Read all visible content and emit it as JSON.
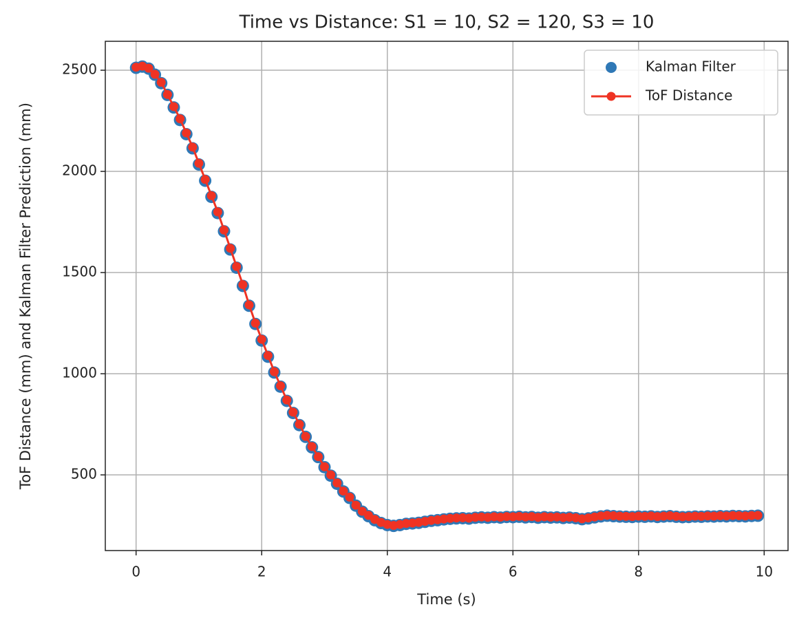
{
  "chart_data": {
    "type": "line",
    "title": "Time vs Distance: S1 = 10, S2 = 120, S3 = 10",
    "x_label": "Time (s)",
    "y_label": "ToF Distance (mm) and Kalman Filter Prediction (mm)",
    "xlim": [
      -0.49,
      10.38
    ],
    "ylim": [
      126,
      2643
    ],
    "xticks": [
      0,
      2,
      4,
      6,
      8,
      10
    ],
    "yticks": [
      500,
      1000,
      1500,
      2000,
      2500
    ],
    "grid": true,
    "legend": "upper right",
    "series": [
      {
        "name": "Kalman Filter",
        "color": "#2f78b6",
        "style": "markers",
        "x": [
          0,
          0.1,
          0.2,
          0.3,
          0.4,
          0.5,
          0.6,
          0.7,
          0.8,
          0.9,
          1,
          1.1,
          1.2,
          1.3,
          1.4,
          1.5,
          1.6,
          1.7,
          1.8,
          1.9,
          2,
          2.1,
          2.2,
          2.3,
          2.4,
          2.5,
          2.6,
          2.7,
          2.8,
          2.9,
          3,
          3.1,
          3.2,
          3.3,
          3.4,
          3.5,
          3.6,
          3.7,
          3.8,
          3.9,
          4,
          4.1,
          4.2,
          4.3,
          4.4,
          4.5,
          4.6,
          4.7,
          4.8,
          4.9,
          5,
          5.1,
          5.2,
          5.3,
          5.4,
          5.5,
          5.6,
          5.7,
          5.8,
          5.9,
          6,
          6.1,
          6.2,
          6.3,
          6.4,
          6.5,
          6.6,
          6.7,
          6.8,
          6.9,
          7,
          7.1,
          7.2,
          7.3,
          7.4,
          7.5,
          7.6,
          7.7,
          7.8,
          7.9,
          8,
          8.1,
          8.2,
          8.3,
          8.4,
          8.5,
          8.6,
          8.7,
          8.8,
          8.9,
          9,
          9.1,
          9.2,
          9.3,
          9.4,
          9.5,
          9.6,
          9.7,
          9.8,
          9.9
        ],
        "values": [
          2512,
          2518,
          2508,
          2478,
          2436,
          2378,
          2316,
          2254,
          2184,
          2114,
          2034,
          1954,
          1874,
          1794,
          1704,
          1614,
          1524,
          1434,
          1336,
          1246,
          1164,
          1084,
          1006,
          936,
          866,
          806,
          746,
          688,
          636,
          588,
          538,
          496,
          456,
          418,
          386,
          348,
          318,
          296,
          276,
          262,
          252,
          248,
          252,
          258,
          260,
          263,
          268,
          273,
          276,
          280,
          283,
          285,
          286,
          284,
          288,
          290,
          288,
          291,
          289,
          292,
          291,
          293,
          290,
          292,
          288,
          291,
          289,
          290,
          287,
          289,
          286,
          281,
          285,
          290,
          295,
          298,
          296,
          294,
          293,
          292,
          294,
          293,
          295,
          292,
          294,
          296,
          293,
          291,
          292,
          294,
          293,
          295,
          294,
          296,
          295,
          297,
          296,
          295,
          297,
          298
        ]
      },
      {
        "name": "ToF Distance",
        "color": "#ef3323",
        "style": "line-markers",
        "x": [
          0,
          0.1,
          0.2,
          0.3,
          0.4,
          0.5,
          0.6,
          0.7,
          0.8,
          0.9,
          1,
          1.1,
          1.2,
          1.3,
          1.4,
          1.5,
          1.6,
          1.7,
          1.8,
          1.9,
          2,
          2.1,
          2.2,
          2.3,
          2.4,
          2.5,
          2.6,
          2.7,
          2.8,
          2.9,
          3,
          3.1,
          3.2,
          3.3,
          3.4,
          3.5,
          3.6,
          3.7,
          3.8,
          3.9,
          4,
          4.1,
          4.2,
          4.3,
          4.4,
          4.5,
          4.6,
          4.7,
          4.8,
          4.9,
          5,
          5.1,
          5.2,
          5.3,
          5.4,
          5.5,
          5.6,
          5.7,
          5.8,
          5.9,
          6,
          6.1,
          6.2,
          6.3,
          6.4,
          6.5,
          6.6,
          6.7,
          6.8,
          6.9,
          7,
          7.1,
          7.2,
          7.3,
          7.4,
          7.5,
          7.6,
          7.7,
          7.8,
          7.9,
          8,
          8.1,
          8.2,
          8.3,
          8.4,
          8.5,
          8.6,
          8.7,
          8.8,
          8.9,
          9,
          9.1,
          9.2,
          9.3,
          9.4,
          9.5,
          9.6,
          9.7,
          9.8,
          9.9
        ],
        "values": [
          2515,
          2520,
          2510,
          2480,
          2440,
          2380,
          2320,
          2260,
          2190,
          2120,
          2040,
          1960,
          1880,
          1800,
          1710,
          1620,
          1530,
          1440,
          1340,
          1250,
          1170,
          1090,
          1010,
          940,
          870,
          810,
          750,
          690,
          640,
          590,
          540,
          500,
          460,
          420,
          390,
          350,
          320,
          300,
          280,
          265,
          255,
          250,
          255,
          260,
          262,
          265,
          270,
          275,
          278,
          282,
          285,
          287,
          288,
          286,
          290,
          292,
          290,
          293,
          291,
          294,
          293,
          295,
          292,
          294,
          290,
          293,
          291,
          292,
          289,
          291,
          288,
          283,
          287,
          292,
          297,
          300,
          298,
          296,
          295,
          294,
          296,
          295,
          297,
          294,
          296,
          298,
          295,
          293,
          294,
          296,
          295,
          297,
          296,
          298,
          297,
          299,
          298,
          297,
          299,
          300
        ]
      }
    ]
  }
}
